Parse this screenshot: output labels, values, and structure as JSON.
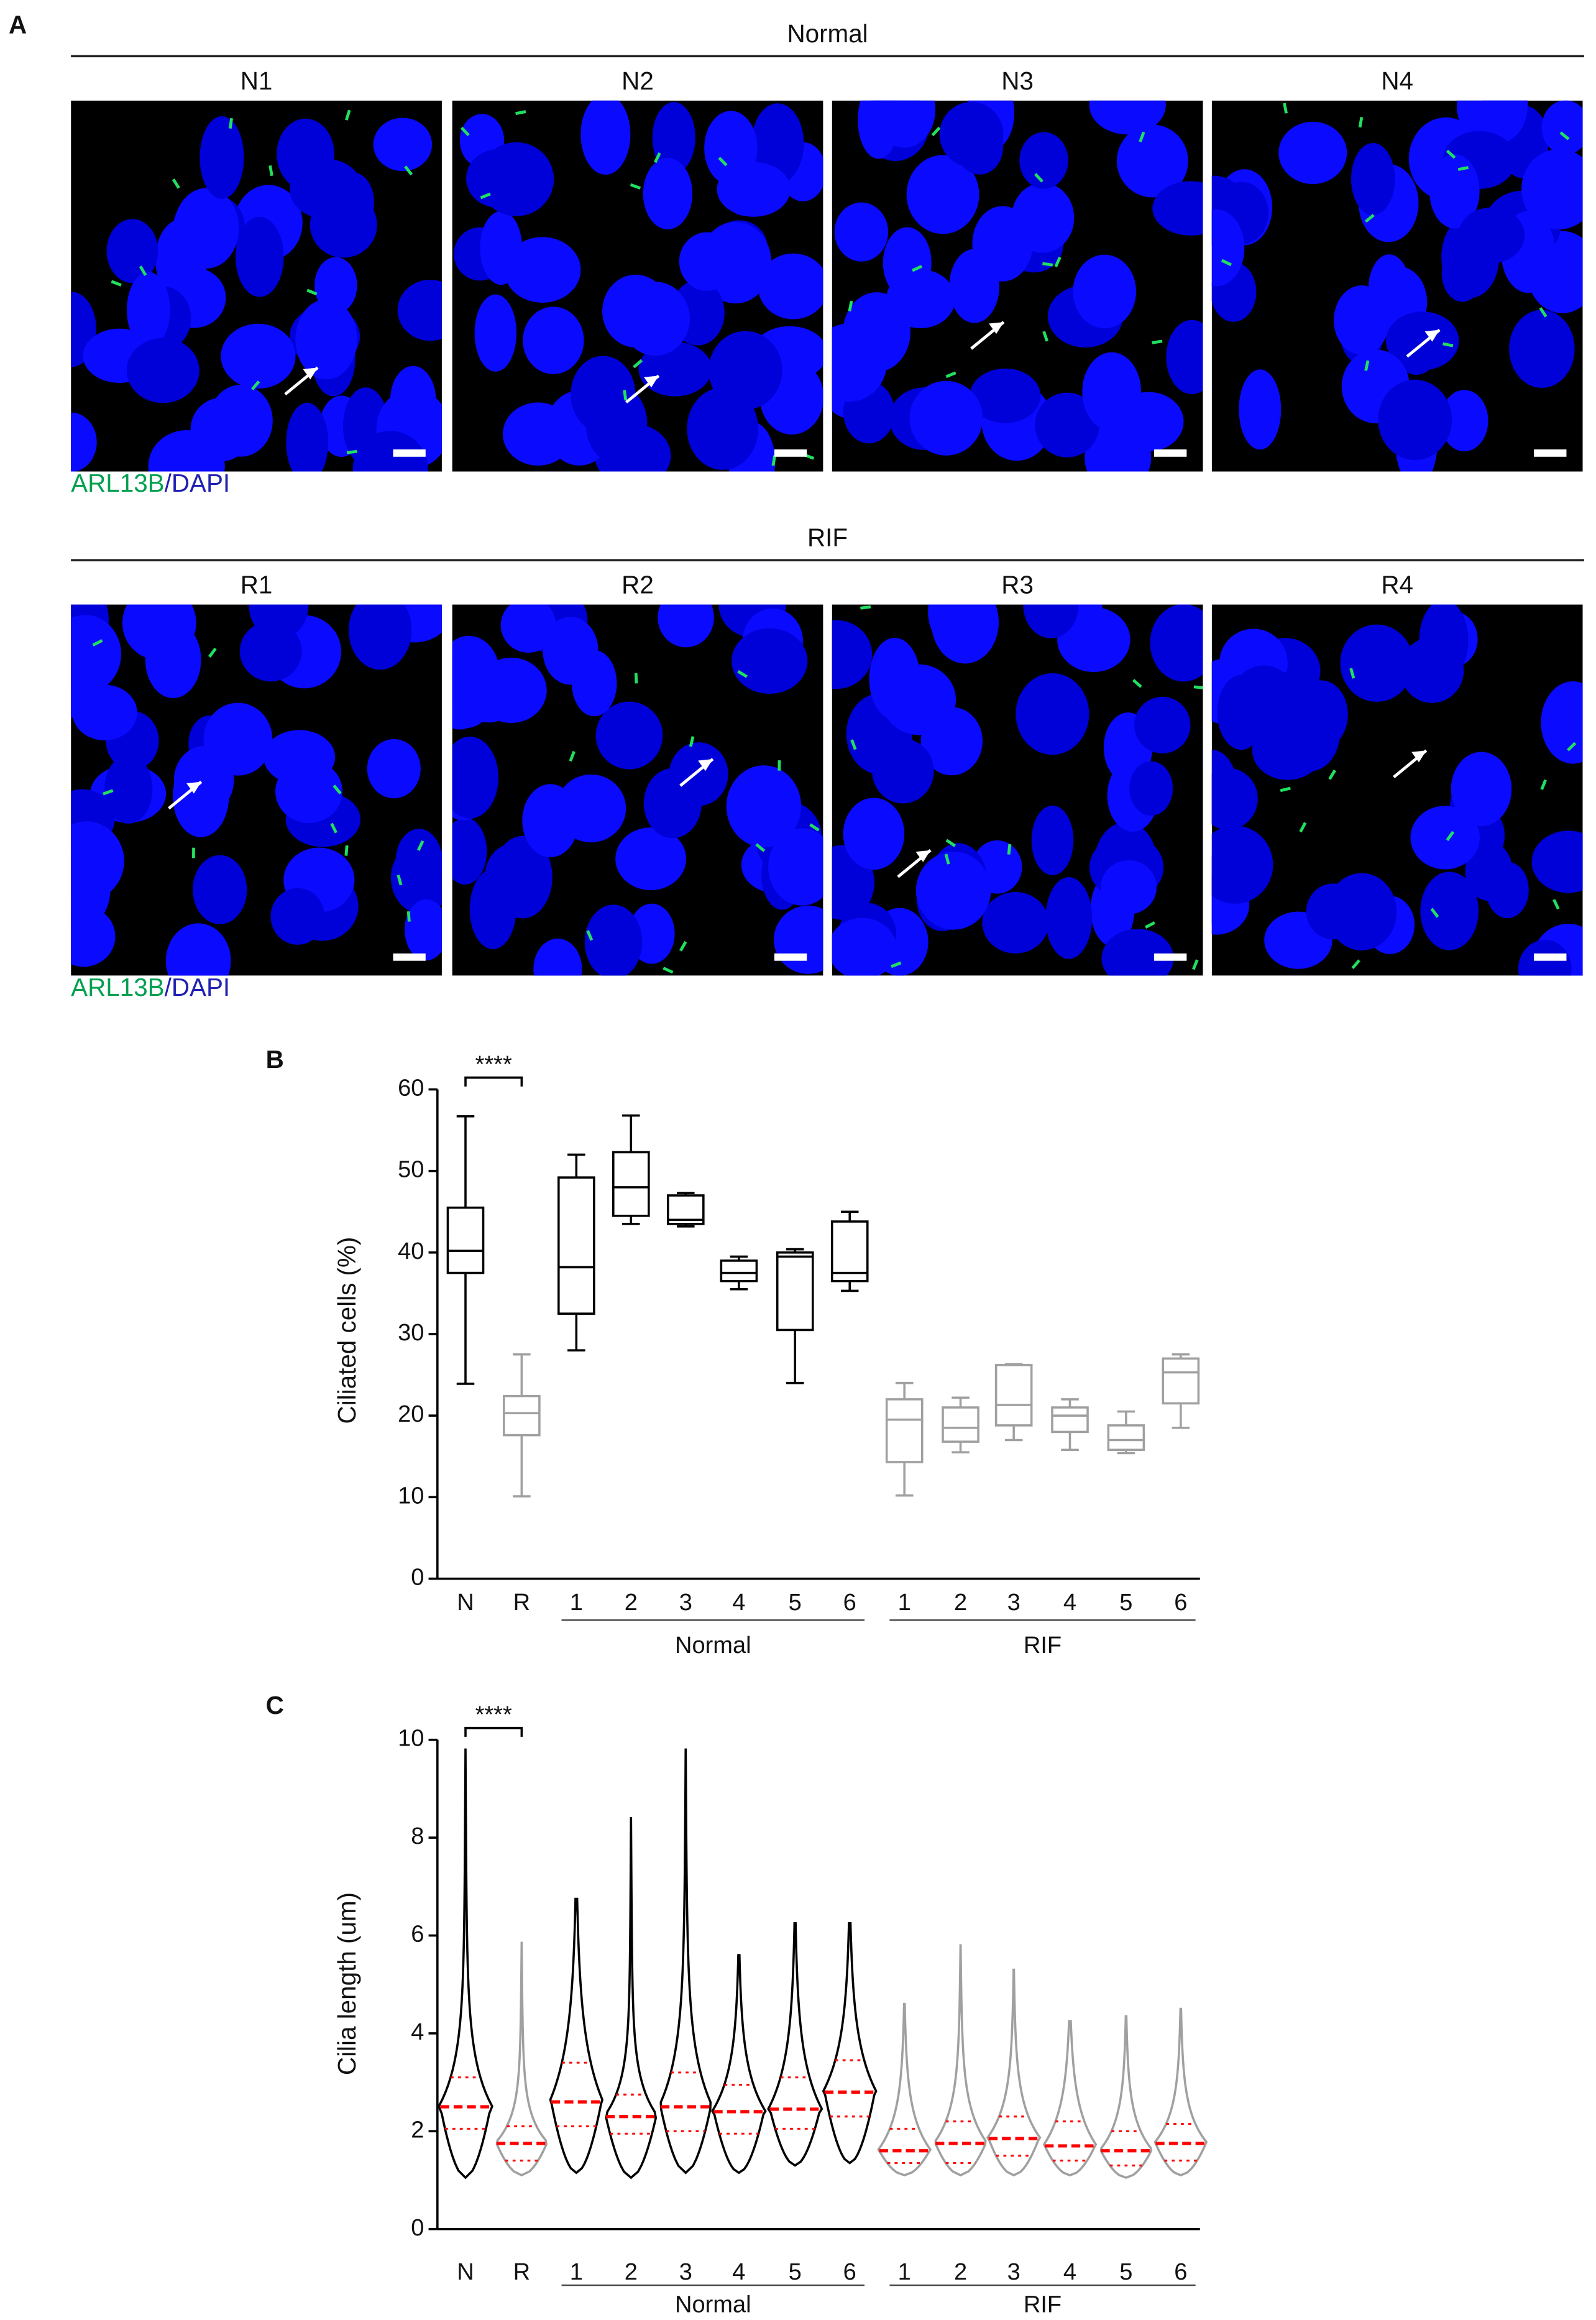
{
  "panel_labels": [
    "A",
    "B",
    "C"
  ],
  "panel_a": {
    "rows": [
      {
        "header": "Normal",
        "images": [
          "N1",
          "N2",
          "N3",
          "N4"
        ]
      },
      {
        "header": "RIF",
        "images": [
          "R1",
          "R2",
          "R3",
          "R4"
        ]
      }
    ],
    "stain": [
      "ARL13B",
      "/DAPI"
    ]
  },
  "chart_data": [
    {
      "type": "box",
      "y_label": "Ciliated cells (%)",
      "categories": [
        "N",
        "R",
        "1",
        "2",
        "3",
        "4",
        "5",
        "6",
        "1",
        "2",
        "3",
        "4",
        "5",
        "6"
      ],
      "group_labels": [
        "Normal",
        "RIF"
      ],
      "annotation": "****",
      "ylim": [
        0,
        60
      ],
      "yticks": [
        0,
        10,
        20,
        30,
        40,
        50,
        60
      ],
      "boxes": [
        {
          "min": 23.9,
          "q1": 37.5,
          "median": 40.2,
          "q3": 45.5,
          "max": 56.7,
          "color": "#000000"
        },
        {
          "min": 10.1,
          "q1": 17.6,
          "median": 20.3,
          "q3": 22.4,
          "max": 27.5,
          "color": "#a0a0a0"
        },
        {
          "min": 28,
          "q1": 32.5,
          "median": 38.2,
          "q3": 49.2,
          "max": 52,
          "color": "#000000"
        },
        {
          "min": 43.5,
          "q1": 44.5,
          "median": 48,
          "q3": 52.3,
          "max": 56.8,
          "color": "#000000"
        },
        {
          "min": 43.2,
          "q1": 43.5,
          "median": 44,
          "q3": 47,
          "max": 47.3,
          "color": "#000000"
        },
        {
          "min": 35.5,
          "q1": 36.5,
          "median": 37.5,
          "q3": 39,
          "max": 39.5,
          "color": "#000000"
        },
        {
          "min": 24,
          "q1": 30.5,
          "median": 39.5,
          "q3": 40,
          "max": 40.4,
          "color": "#000000"
        },
        {
          "min": 35.3,
          "q1": 36.5,
          "median": 37.5,
          "q3": 43.8,
          "max": 45,
          "color": "#000000"
        },
        {
          "min": 10.2,
          "q1": 14.3,
          "median": 19.5,
          "q3": 22,
          "max": 24,
          "color": "#a0a0a0"
        },
        {
          "min": 15.5,
          "q1": 16.8,
          "median": 18.5,
          "q3": 21,
          "max": 22.2,
          "color": "#a0a0a0"
        },
        {
          "min": 17,
          "q1": 18.8,
          "median": 21.3,
          "q3": 26.2,
          "max": 26.3,
          "color": "#a0a0a0"
        },
        {
          "min": 15.8,
          "q1": 18,
          "median": 20,
          "q3": 21,
          "max": 22,
          "color": "#a0a0a0"
        },
        {
          "min": 15.4,
          "q1": 15.8,
          "median": 17,
          "q3": 18.8,
          "max": 20.5,
          "color": "#a0a0a0"
        },
        {
          "min": 18.5,
          "q1": 21.5,
          "median": 25.3,
          "q3": 27,
          "max": 27.5,
          "color": "#a0a0a0"
        }
      ]
    },
    {
      "type": "violin",
      "y_label": "Cilia length (um)",
      "categories": [
        "N",
        "R",
        "1",
        "2",
        "3",
        "4",
        "5",
        "6",
        "1",
        "2",
        "3",
        "4",
        "5",
        "6"
      ],
      "group_labels": [
        "Normal",
        "RIF"
      ],
      "annotation": "****",
      "quartile_color": "#ff0000",
      "ylim": [
        0,
        10
      ],
      "yticks": [
        0,
        2,
        4,
        6,
        8,
        10
      ],
      "violins": [
        {
          "min": 1.05,
          "q1": 2.05,
          "median": 2.5,
          "q3": 3.1,
          "max": 9.8,
          "color": "#000000"
        },
        {
          "min": 1.1,
          "q1": 1.4,
          "median": 1.75,
          "q3": 2.1,
          "max": 5.85,
          "color": "#a0a0a0"
        },
        {
          "min": 1.15,
          "q1": 2.1,
          "median": 2.6,
          "q3": 3.4,
          "max": 6.75,
          "color": "#000000"
        },
        {
          "min": 1.05,
          "q1": 1.95,
          "median": 2.3,
          "q3": 2.75,
          "max": 8.4,
          "color": "#000000"
        },
        {
          "min": 1.15,
          "q1": 2,
          "median": 2.5,
          "q3": 3.2,
          "max": 9.8,
          "color": "#000000"
        },
        {
          "min": 1.15,
          "q1": 1.95,
          "median": 2.4,
          "q3": 2.95,
          "max": 5.6,
          "color": "#000000"
        },
        {
          "min": 1.3,
          "q1": 2.05,
          "median": 2.45,
          "q3": 3.1,
          "max": 6.25,
          "color": "#000000"
        },
        {
          "min": 1.35,
          "q1": 2.3,
          "median": 2.8,
          "q3": 3.45,
          "max": 6.25,
          "color": "#000000"
        },
        {
          "min": 1.1,
          "q1": 1.35,
          "median": 1.6,
          "q3": 2.05,
          "max": 4.6,
          "color": "#a0a0a0"
        },
        {
          "min": 1.1,
          "q1": 1.35,
          "median": 1.75,
          "q3": 2.2,
          "max": 5.8,
          "color": "#a0a0a0"
        },
        {
          "min": 1.1,
          "q1": 1.5,
          "median": 1.85,
          "q3": 2.3,
          "max": 5.3,
          "color": "#a0a0a0"
        },
        {
          "min": 1.1,
          "q1": 1.4,
          "median": 1.7,
          "q3": 2.2,
          "max": 4.25,
          "color": "#a0a0a0"
        },
        {
          "min": 1.05,
          "q1": 1.3,
          "median": 1.6,
          "q3": 2,
          "max": 4.35,
          "color": "#a0a0a0"
        },
        {
          "min": 1.1,
          "q1": 1.4,
          "median": 1.75,
          "q3": 2.15,
          "max": 4.5,
          "color": "#a0a0a0"
        }
      ]
    }
  ]
}
